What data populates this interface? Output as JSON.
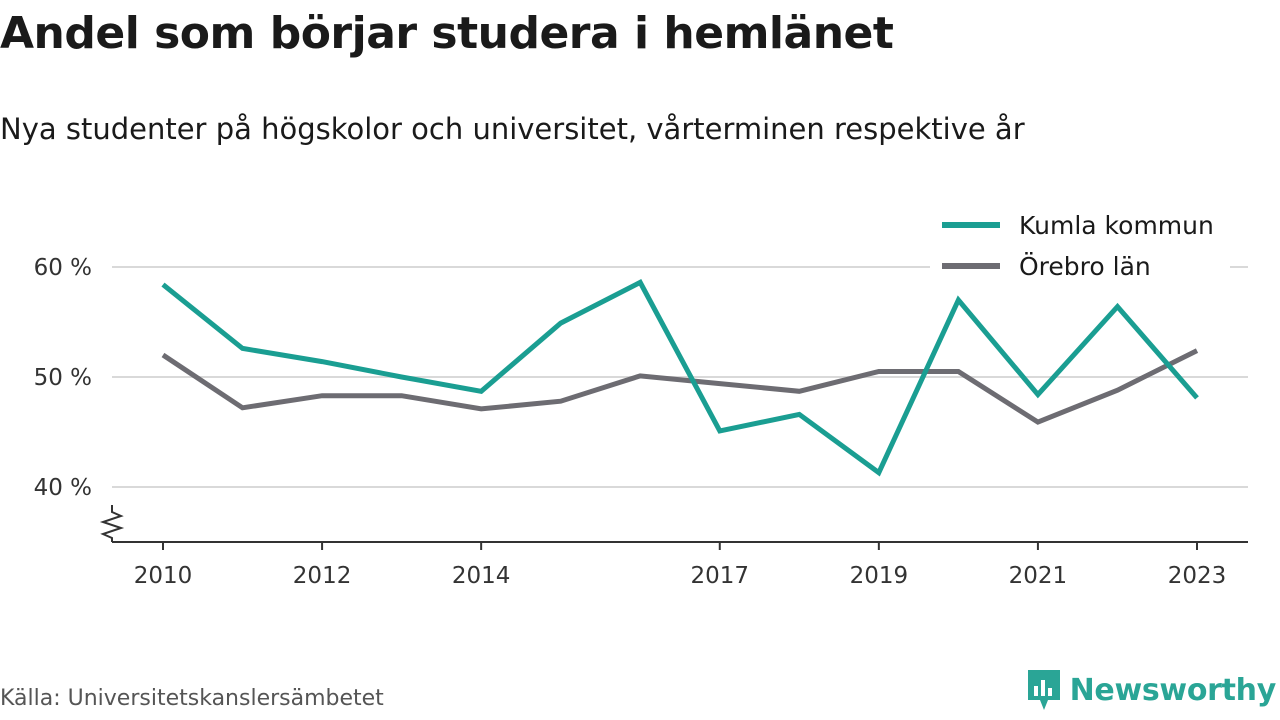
{
  "title": "Andel som börjar studera i hemlänet",
  "subtitle": "Nya studenter på högskolor och universitet, vårterminen respektive år",
  "source": "Källa: Universitetskanslersämbetet",
  "brand": "Newsworthy",
  "colors": {
    "kumla": "#1a9e92",
    "orebro": "#6d6c72",
    "grid": "#d9d9d9",
    "axis": "#333333",
    "brand": "#2aa596"
  },
  "chart_data": {
    "type": "line",
    "x": [
      2010,
      2011,
      2012,
      2013,
      2014,
      2015,
      2016,
      2017,
      2018,
      2019,
      2020,
      2021,
      2022,
      2023
    ],
    "x_tick_labels": [
      "2010",
      "2012",
      "2014",
      "2017",
      "2019",
      "2021",
      "2023"
    ],
    "y_tick_labels": [
      "60 %",
      "50 %",
      "40 %"
    ],
    "y_ticks": [
      60,
      50,
      40
    ],
    "ylim": [
      35,
      62
    ],
    "axis_break": true,
    "grid": true,
    "legend_position": "top-right",
    "series": [
      {
        "name": "Kumla kommun",
        "color": "#1a9e92",
        "values": [
          58.4,
          52.6,
          51.4,
          50.0,
          48.7,
          54.9,
          58.6,
          45.1,
          46.6,
          41.3,
          57.0,
          48.4,
          56.4,
          48.1
        ]
      },
      {
        "name": "Örebro län",
        "color": "#6d6c72",
        "values": [
          52.0,
          47.2,
          48.3,
          48.3,
          47.1,
          47.8,
          50.1,
          49.4,
          48.7,
          50.5,
          50.5,
          45.9,
          48.8,
          52.4
        ]
      }
    ]
  }
}
